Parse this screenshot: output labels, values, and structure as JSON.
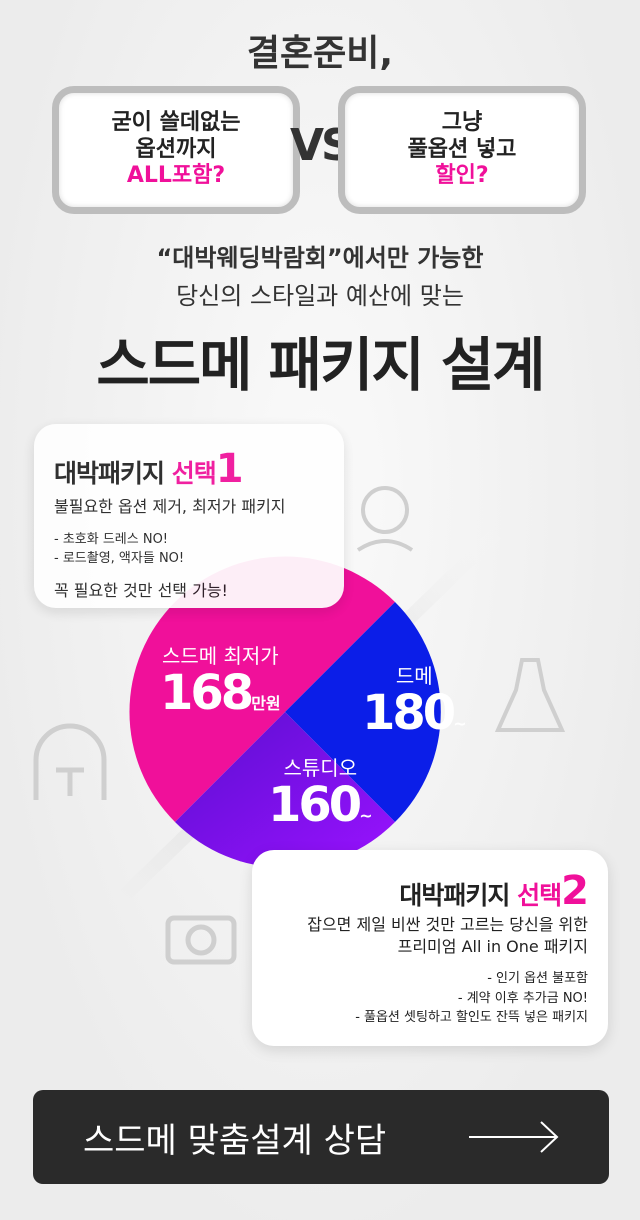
{
  "headline": "결혼준비,",
  "compare": {
    "left": {
      "line1": "굳이 쓸데없는",
      "line2": "옵션까지",
      "line3": "ALL포함?"
    },
    "vs": "VS",
    "right": {
      "line1": "그냥",
      "line2": "풀옵션 넣고",
      "line3": "할인?"
    }
  },
  "subtitle1": "“대박웨딩박람회”에서만 가능한",
  "subtitle2": "당신의 스타일과 예산에 맞는",
  "main_title": "스드메 패키지 설계",
  "option1": {
    "title": "대박패키지",
    "title_accent": "선택",
    "number": "1",
    "desc": "불필요한 옵션 제거, 최저가 패키지",
    "items": [
      "- 초호화 드레스 NO!",
      "- 로드촬영, 액자들 NO!"
    ],
    "emphasis": "꼭 필요한 것만 선택 가능!"
  },
  "option2": {
    "title": "대박패키지",
    "title_accent": "선택",
    "number": "2",
    "desc1": "잡으면 제일 비싼 것만 고르는 당신을 위한",
    "desc2": "프리미엄 All in One 패키지",
    "items": [
      "- 인기 옵션 불포함",
      "- 계약 이후 추가금 NO!",
      "- 풀옵션 셋팅하고 할인도 잔뜩 넣은 패키지"
    ]
  },
  "prices": {
    "total": {
      "label": "스드메 최저가",
      "value": "168",
      "unit": "만원"
    },
    "dress": {
      "label": "드메",
      "value": "180",
      "unit": "~"
    },
    "studio": {
      "label": "스튜디오",
      "value": "160",
      "unit": "~"
    }
  },
  "colors": {
    "pink": "#f0109a",
    "blue": "#0b1ee8",
    "purple": "#7b10f0",
    "cta": "#2a2a2a"
  },
  "cta": {
    "label": "스드메 맞춤설계 상담"
  }
}
